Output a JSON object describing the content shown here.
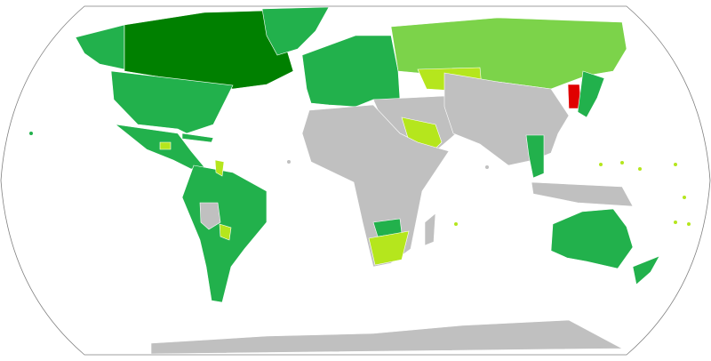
{
  "map": {
    "projection": "Robinson",
    "colors": {
      "ocean": "#ffffff",
      "outline": "#808080",
      "no_data": "#c0c0c0",
      "dark_green": "#008000",
      "green": "#22b14c",
      "light_green": "#7cd34a",
      "yellow_green": "#b5e61d",
      "red": "#e00000"
    }
  }
}
